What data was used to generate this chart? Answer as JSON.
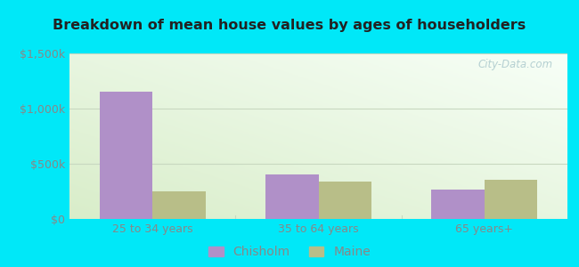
{
  "title": "Breakdown of mean house values by ages of householders",
  "categories": [
    "25 to 34 years",
    "35 to 64 years",
    "65 years+"
  ],
  "chisholm_values": [
    1150000,
    400000,
    270000
  ],
  "maine_values": [
    250000,
    340000,
    355000
  ],
  "chisholm_color": "#b090c8",
  "maine_color": "#b8be88",
  "ylim": [
    0,
    1500000
  ],
  "yticks": [
    0,
    500000,
    1000000,
    1500000
  ],
  "ytick_labels": [
    "$0",
    "$500k",
    "$1,000k",
    "$1,500k"
  ],
  "bar_width": 0.32,
  "background_outer": "#00e8f8",
  "legend_labels": [
    "Chisholm",
    "Maine"
  ],
  "watermark": "City-Data.com",
  "tick_color": "#888888",
  "grid_color": "#c8d8c0",
  "title_color": "#222222"
}
